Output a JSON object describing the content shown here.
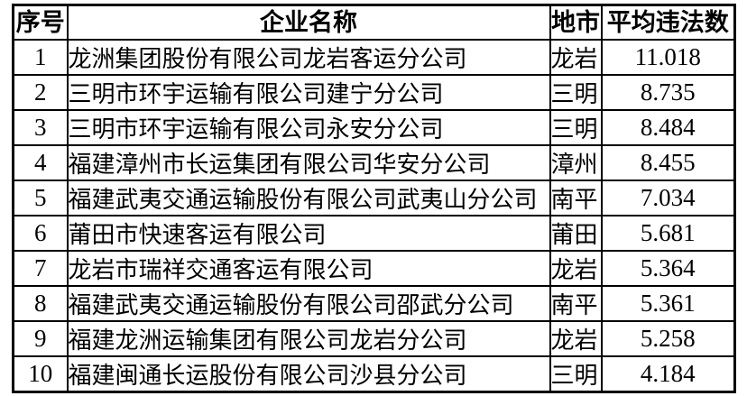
{
  "table": {
    "colors": {
      "border": "#000000",
      "background": "#ffffff",
      "text": "#000000"
    },
    "columns": [
      {
        "key": "index",
        "label": "序号"
      },
      {
        "key": "name",
        "label": "企业名称"
      },
      {
        "key": "city",
        "label": "地市"
      },
      {
        "key": "avg",
        "label": "平均违法数"
      }
    ],
    "rows": [
      {
        "index": "1",
        "name": "龙洲集团股份有限公司龙岩客运分公司",
        "city": "龙岩",
        "avg": "11.018"
      },
      {
        "index": "2",
        "name": "三明市环宇运输有限公司建宁分公司",
        "city": "三明",
        "avg": "8.735"
      },
      {
        "index": "3",
        "name": "三明市环宇运输有限公司永安分公司",
        "city": "三明",
        "avg": "8.484"
      },
      {
        "index": "4",
        "name": "福建漳州市长运集团有限公司华安分公司",
        "city": "漳州",
        "avg": "8.455"
      },
      {
        "index": "5",
        "name": "福建武夷交通运输股份有限公司武夷山分公司",
        "city": "南平",
        "avg": "7.034"
      },
      {
        "index": "6",
        "name": "莆田市快速客运有限公司",
        "city": "莆田",
        "avg": "5.681"
      },
      {
        "index": "7",
        "name": "龙岩市瑞祥交通客运有限公司",
        "city": "龙岩",
        "avg": "5.364"
      },
      {
        "index": "8",
        "name": "福建武夷交通运输股份有限公司邵武分公司",
        "city": "南平",
        "avg": "5.361"
      },
      {
        "index": "9",
        "name": "福建龙洲运输集团有限公司龙岩分公司",
        "city": "龙岩",
        "avg": "5.258"
      },
      {
        "index": "10",
        "name": "福建闽通长运股份有限公司沙县分公司",
        "city": "三明",
        "avg": "4.184"
      }
    ]
  }
}
